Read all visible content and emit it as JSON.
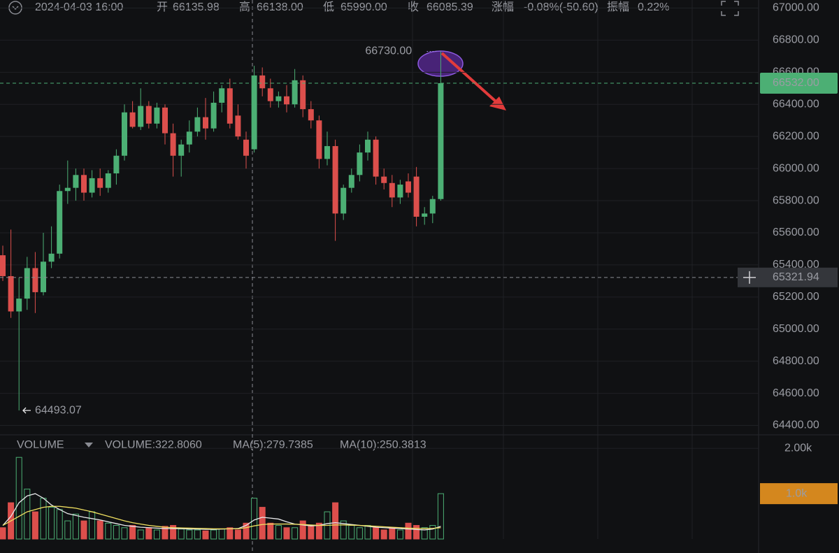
{
  "header": {
    "date": "2024-04-03 16:00",
    "items": [
      {
        "label": "开",
        "value": "66135.98"
      },
      {
        "label": "高",
        "value": "66138.00"
      },
      {
        "label": "低",
        "value": "65990.00"
      },
      {
        "label": "收",
        "value": "66085.39"
      },
      {
        "label": "涨幅",
        "value": "-0.08%(-50.60)"
      },
      {
        "label": "振幅",
        "value": "0.22%"
      }
    ]
  },
  "chart_data": {
    "type": "candlestick",
    "grid": true,
    "colors": {
      "up": "#4caf74",
      "down": "#dc4f4c"
    },
    "ylim": [
      64350,
      67050
    ],
    "yticks": [
      {
        "value": 64400,
        "label": "64400.00"
      },
      {
        "value": 64600,
        "label": "64600.00"
      },
      {
        "value": 64800,
        "label": "64800.00"
      },
      {
        "value": 65000,
        "label": "65000.00"
      },
      {
        "value": 65200,
        "label": "65200.00"
      },
      {
        "value": 65400,
        "label": "65400.00"
      },
      {
        "value": 65600,
        "label": "65600.00"
      },
      {
        "value": 65800,
        "label": "65800.00"
      },
      {
        "value": 66000,
        "label": "66000.00"
      },
      {
        "value": 66200,
        "label": "66200.00"
      },
      {
        "value": 66400,
        "label": "66400.00"
      },
      {
        "value": 66600,
        "label": "66600.00"
      },
      {
        "value": 66800,
        "label": "66800.00"
      },
      {
        "value": 67000,
        "label": "67000.00"
      }
    ],
    "open": [
      65460,
      65330,
      65110,
      65190,
      65380,
      65230,
      65420,
      65470,
      65860,
      65880,
      65960,
      65850,
      65940,
      65880,
      65970,
      66080,
      66350,
      66260,
      66390,
      66280,
      66380,
      66220,
      66080,
      66150,
      66230,
      66320,
      66250,
      66410,
      66500,
      66330,
      66180,
      66120,
      66580,
      66500,
      66420,
      66450,
      66400,
      66550,
      66370,
      66300,
      66060,
      66140,
      65720,
      65880,
      65960,
      66100,
      66180,
      65950,
      65910,
      65820,
      65920,
      65950,
      65700,
      65720,
      65810
    ],
    "high": [
      65520,
      65620,
      65320,
      65450,
      65480,
      65600,
      65640,
      65900,
      66050,
      66000,
      66000,
      65990,
      66000,
      65990,
      66120,
      66400,
      66420,
      66500,
      66420,
      66410,
      66400,
      66280,
      66180,
      66300,
      66380,
      66440,
      66480,
      66520,
      66560,
      66400,
      66230,
      66640,
      66630,
      66560,
      66480,
      66520,
      66620,
      66580,
      66420,
      66330,
      66230,
      66180,
      65900,
      66000,
      66150,
      66230,
      66200,
      66000,
      65960,
      65930,
      65970,
      66010,
      65760,
      65830,
      66730
    ],
    "low": [
      65300,
      65070,
      64493.07,
      65120,
      65100,
      65210,
      65380,
      65440,
      65780,
      65800,
      65800,
      65820,
      65830,
      65850,
      65900,
      66050,
      66250,
      66240,
      66250,
      66250,
      66150,
      65950,
      65950,
      66100,
      66200,
      66180,
      66230,
      66350,
      66250,
      66180,
      66000,
      66100,
      66450,
      66380,
      66380,
      66350,
      66380,
      66320,
      66250,
      66000,
      66020,
      65550,
      65680,
      65850,
      65920,
      66050,
      65900,
      65870,
      65760,
      65780,
      65820,
      65640,
      65650,
      65660,
      65800
    ],
    "close": [
      65330,
      65110,
      65190,
      65380,
      65230,
      65420,
      65470,
      65860,
      65880,
      65960,
      65850,
      65940,
      65880,
      65970,
      66080,
      66350,
      66260,
      66390,
      66280,
      66380,
      66220,
      66080,
      66150,
      66230,
      66320,
      66250,
      66410,
      66500,
      66280,
      66200,
      66080,
      66580,
      66500,
      66420,
      66450,
      66400,
      66550,
      66370,
      66300,
      66060,
      66140,
      65720,
      65880,
      65960,
      66100,
      66180,
      65950,
      65910,
      65820,
      65900,
      65850,
      65700,
      65720,
      65810,
      66532
    ],
    "annotations": {
      "high": {
        "value": 66730,
        "label": "66730.00"
      },
      "low": 64493.07
    },
    "last_price": {
      "value": 66532,
      "label": "66532.00"
    },
    "crosshair": 65321.94,
    "volume": {
      "title": "VOLUME",
      "legend": "VOLUME:322.8060",
      "ylim": [
        0,
        2250
      ],
      "yticks": [
        {
          "value": 2000,
          "label": "2.00k"
        }
      ],
      "marker": {
        "value": 1000,
        "label": "1.0k",
        "color": "#d4871e"
      },
      "values": [
        250,
        800,
        1800,
        1100,
        600,
        900,
        700,
        650,
        400,
        550,
        400,
        600,
        400,
        350,
        300,
        250,
        300,
        200,
        250,
        200,
        280,
        300,
        220,
        200,
        200,
        180,
        200,
        220,
        250,
        200,
        350,
        900,
        700,
        350,
        300,
        250,
        250,
        400,
        300,
        350,
        600,
        800,
        400,
        300,
        250,
        300,
        250,
        200,
        250,
        200,
        350,
        300,
        250,
        300,
        1000
      ],
      "series": [
        {
          "name": "MA(5):279.7385",
          "color": "#e8e8ea",
          "values": [
            300,
            500,
            800,
            950,
            1000,
            900,
            750,
            650,
            560,
            520,
            480,
            450,
            420,
            380,
            340,
            300,
            280,
            260,
            250,
            240,
            230,
            230,
            230,
            220,
            220,
            215,
            215,
            220,
            225,
            230,
            300,
            420,
            480,
            460,
            440,
            380,
            330,
            310,
            290,
            300,
            340,
            360,
            340,
            320,
            300,
            280,
            260,
            250,
            240,
            230,
            220,
            210,
            200,
            220,
            279.7385
          ]
        },
        {
          "name": "MA(10):250.3813",
          "color": "#f0e060",
          "values": [
            300,
            400,
            500,
            600,
            650,
            700,
            720,
            720,
            700,
            680,
            640,
            600,
            550,
            500,
            450,
            400,
            360,
            330,
            300,
            280,
            260,
            250,
            245,
            240,
            235,
            230,
            225,
            225,
            225,
            225,
            250,
            290,
            320,
            330,
            330,
            330,
            325,
            320,
            310,
            300,
            300,
            310,
            310,
            305,
            300,
            290,
            280,
            270,
            260,
            250,
            240,
            235,
            230,
            235,
            250.3813
          ]
        }
      ]
    }
  }
}
